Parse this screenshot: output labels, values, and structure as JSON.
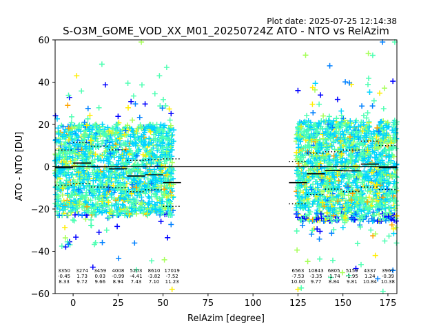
{
  "chart_data": {
    "type": "scatter",
    "title": "S-O3M_GOME_VOD_XX_M01_20250724Z ATO - NTO vs RelAzim",
    "plot_date": "Plot date: 2025-07-25 12:14:38",
    "xlabel": "RelAzim [degree]",
    "ylabel": "ATO - NTO [DU]",
    "xlim": [
      -10,
      180
    ],
    "ylim": [
      -60,
      60
    ],
    "xticks": [
      0,
      25,
      50,
      75,
      100,
      125,
      150,
      175
    ],
    "yticks": [
      -60,
      -40,
      -20,
      0,
      20,
      40,
      60
    ],
    "grid": false,
    "zero_line": 0,
    "marker": "+",
    "colormap": [
      "#0000ff",
      "#0080ff",
      "#00d4ff",
      "#4dffb2",
      "#a6ff59",
      "#ffee00",
      "#ffa500"
    ],
    "bins": [
      {
        "center": -5.0,
        "count": "3350",
        "mean": "-0.45",
        "std": "8.33",
        "mean_value": -0.45,
        "std_value": 8.33
      },
      {
        "center": 5.0,
        "count": "3274",
        "mean": "1.73",
        "std": "9.72",
        "mean_value": 1.73,
        "std_value": 9.72
      },
      {
        "center": 15.0,
        "count": "3459",
        "mean": "0.03",
        "std": "9.66",
        "mean_value": 0.03,
        "std_value": 9.66
      },
      {
        "center": 25.0,
        "count": "4008",
        "mean": "-0.99",
        "std": "8.94",
        "mean_value": -0.99,
        "std_value": 8.94
      },
      {
        "center": 35.0,
        "count": "5203",
        "mean": "-4.41",
        "std": "7.43",
        "mean_value": -4.41,
        "std_value": 7.43
      },
      {
        "center": 45.0,
        "count": "8610",
        "mean": "-3.82",
        "std": "7.10",
        "mean_value": -3.82,
        "std_value": 7.1
      },
      {
        "center": 55.0,
        "count": "17019",
        "mean": "-7.52",
        "std": "11.23",
        "mean_value": -7.52,
        "std_value": 11.23
      },
      {
        "center": 125.0,
        "count": "6563",
        "mean": "-7.53",
        "std": "10.00",
        "mean_value": -7.53,
        "std_value": 10.0
      },
      {
        "center": 135.0,
        "count": "10843",
        "mean": "-3.35",
        "std": "9.77",
        "mean_value": -3.35,
        "std_value": 9.77
      },
      {
        "center": 145.0,
        "count": "6805",
        "mean": "-1.74",
        "std": "8.84",
        "mean_value": -1.74,
        "std_value": 8.84
      },
      {
        "center": 155.0,
        "count": "5159",
        "mean": "-1.95",
        "std": "9.81",
        "mean_value": -1.95,
        "std_value": 9.81
      },
      {
        "center": 165.0,
        "count": "4337",
        "mean": "1.24",
        "std": "10.84",
        "mean_value": 1.24,
        "std_value": 10.84
      },
      {
        "center": 175.0,
        "count": "3967",
        "mean": "-0.39",
        "std": "10.38",
        "mean_value": -0.39,
        "std_value": 10.38
      }
    ],
    "scatter_clusters": [
      {
        "x_range": [
          -10,
          56
        ],
        "y_core": [
          -25,
          22
        ]
      },
      {
        "x_range": [
          124,
          180
        ],
        "y_core": [
          -28,
          24
        ]
      }
    ]
  }
}
